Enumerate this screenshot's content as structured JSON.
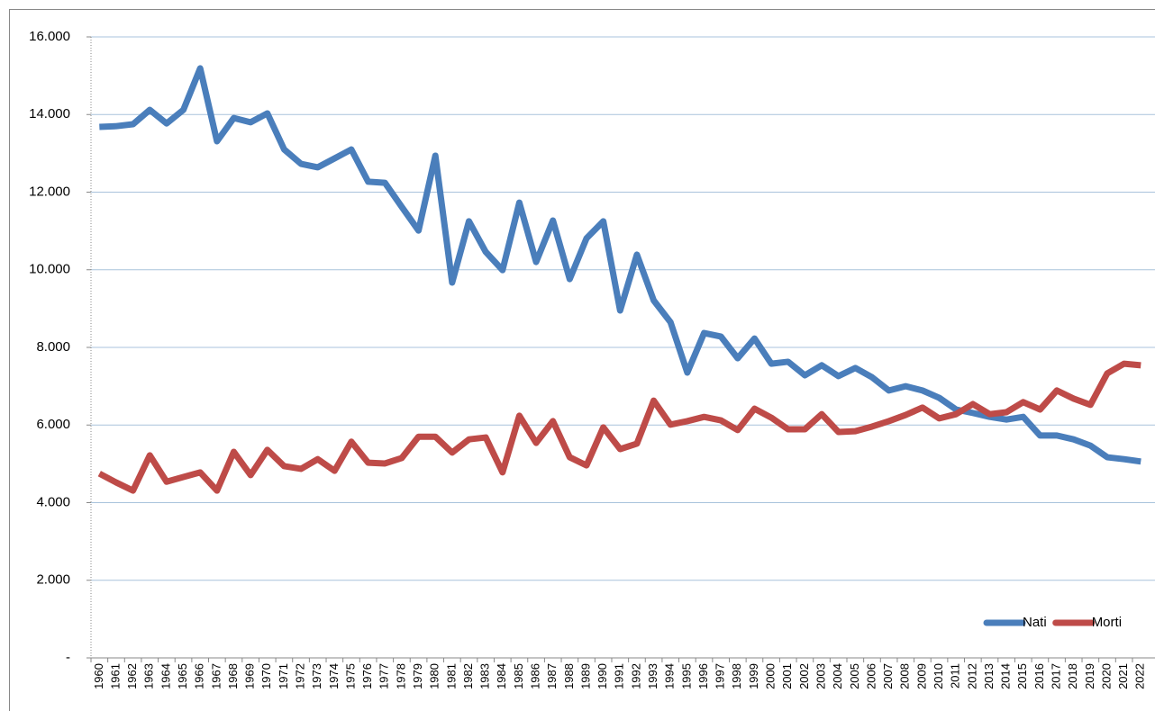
{
  "chart_data": {
    "type": "line",
    "categories": [
      "1960",
      "1961",
      "1962",
      "1963",
      "1964",
      "1965",
      "1966",
      "1967",
      "1968",
      "1969",
      "1970",
      "1971",
      "1972",
      "1973",
      "1974",
      "1975",
      "1976",
      "1977",
      "1978",
      "1979",
      "1980",
      "1981",
      "1982",
      "1983",
      "1984",
      "1985",
      "1986",
      "1987",
      "1988",
      "1989",
      "1990",
      "1991",
      "1992",
      "1993",
      "1994",
      "1995",
      "1996",
      "1997",
      "1998",
      "1999",
      "2000",
      "2001",
      "2002",
      "2003",
      "2004",
      "2005",
      "2006",
      "2007",
      "2008",
      "2009",
      "2010",
      "2011",
      "2012",
      "2013",
      "2014",
      "2015",
      "2016",
      "2017",
      "2018",
      "2019",
      "2020",
      "2021",
      "2022"
    ],
    "series": [
      {
        "name": "Nati",
        "color": "#4a7ebb",
        "values": [
          13680,
          13700,
          13750,
          14120,
          13770,
          14120,
          15190,
          13310,
          13910,
          13800,
          14030,
          13100,
          12730,
          12640,
          12870,
          13100,
          12270,
          12240,
          11620,
          11010,
          12940,
          9670,
          11250,
          10460,
          9990,
          11730,
          10200,
          11270,
          9760,
          10810,
          11250,
          8950,
          10390,
          9210,
          8650,
          7350,
          8370,
          8280,
          7720,
          8230,
          7580,
          7630,
          7280,
          7540,
          7260,
          7470,
          7230,
          6890,
          7000,
          6890,
          6700,
          6400,
          6310,
          6210,
          6140,
          6210,
          5730,
          5730,
          5630,
          5470,
          5170,
          5120,
          5060
        ]
      },
      {
        "name": "Morti",
        "color": "#be4b48",
        "values": [
          4750,
          4520,
          4310,
          5220,
          4540,
          4660,
          4780,
          4310,
          5310,
          4710,
          5360,
          4940,
          4870,
          5120,
          4820,
          5570,
          5030,
          5010,
          5150,
          5700,
          5700,
          5290,
          5630,
          5680,
          4780,
          6240,
          5540,
          6100,
          5170,
          4960,
          5940,
          5380,
          5520,
          6630,
          6010,
          6100,
          6210,
          6120,
          5870,
          6420,
          6190,
          5890,
          5890,
          6280,
          5820,
          5840,
          5960,
          6100,
          6260,
          6450,
          6170,
          6280,
          6540,
          6280,
          6330,
          6590,
          6400,
          6890,
          6680,
          6520,
          7330,
          7580,
          7540
        ]
      }
    ],
    "ylim": [
      0,
      16000
    ],
    "yticks": [
      {
        "value": 0,
        "label": "-"
      },
      {
        "value": 2000,
        "label": "2.000"
      },
      {
        "value": 4000,
        "label": "4.000"
      },
      {
        "value": 6000,
        "label": "6.000"
      },
      {
        "value": 8000,
        "label": "8.000"
      },
      {
        "value": 10000,
        "label": "10.000"
      },
      {
        "value": 12000,
        "label": "12.000"
      },
      {
        "value": 14000,
        "label": "14.000"
      },
      {
        "value": 16000,
        "label": "16.000"
      }
    ],
    "grid": true,
    "legend": "lower right"
  }
}
